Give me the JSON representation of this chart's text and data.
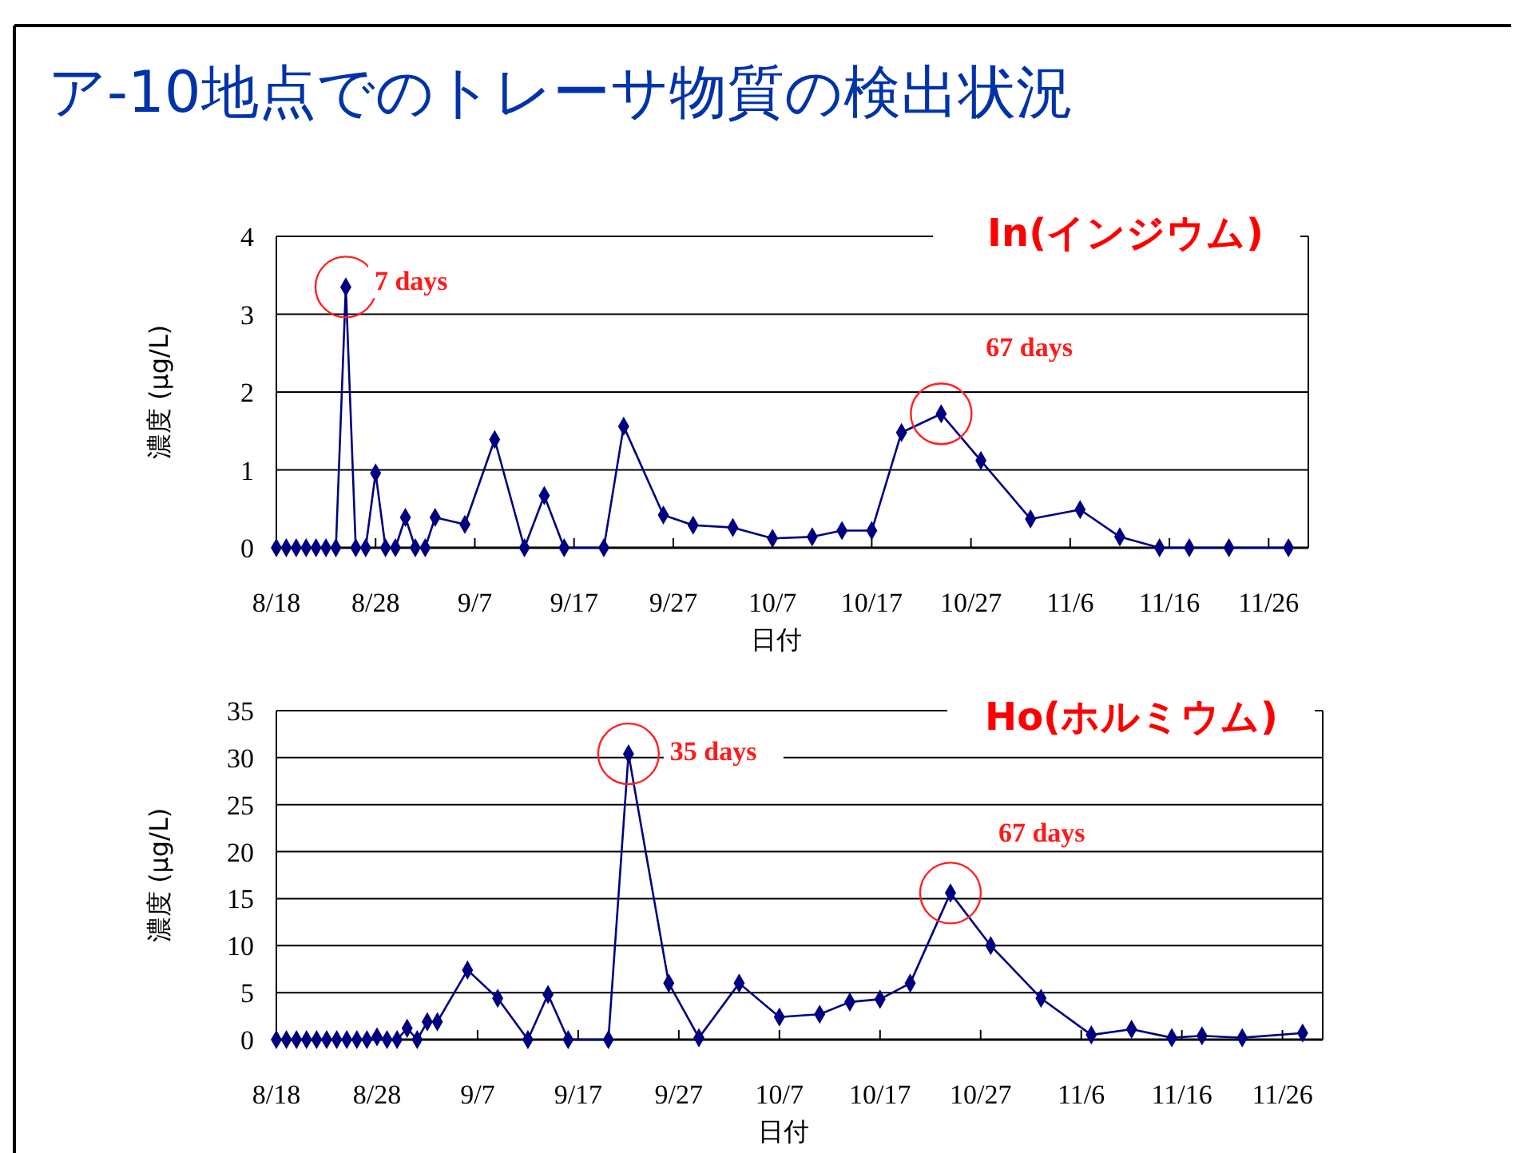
{
  "chart_data": [
    {
      "type": "line",
      "title": "ア-10地点でのトレーサ物質の検出状況",
      "subtitle": "In(インジウム)",
      "xlabel": "日付",
      "ylabel": "濃度 (μg/L)",
      "x": [
        "--08-18",
        "--08-19",
        "--08-20",
        "--08-21",
        "--08-22",
        "--08-23",
        "--08-24",
        "--08-25",
        "--08-26",
        "--08-27",
        "--08-28",
        "--08-29",
        "--08-30",
        "--08-31",
        "--09-01",
        "--09-02",
        "--09-03",
        "--09-06",
        "--09-09",
        "--09-12",
        "--09-14",
        "--09-16",
        "--09-20",
        "--09-22",
        "--09-26",
        "--09-29",
        "--10-03",
        "--10-07",
        "--10-11",
        "--10-14",
        "--10-17",
        "--10-20",
        "--10-24",
        "--10-28",
        "--11-02",
        "--11-07",
        "--11-11",
        "--11-15",
        "--11-18",
        "--11-22",
        "--11-28"
      ],
      "series": [
        {
          "color": "#000080",
          "values": [
            0,
            0,
            0,
            0,
            0,
            0,
            0,
            3.35,
            0,
            0,
            0.96,
            0,
            0,
            0.39,
            0,
            0,
            0.39,
            0.3,
            1.39,
            0,
            0.67,
            0,
            0,
            1.56,
            0.42,
            0.29,
            0.26,
            0.12,
            0.14,
            0.22,
            0.22,
            1.48,
            1.72,
            1.12,
            0.37,
            0.49,
            0.14,
            0,
            0,
            0,
            0
          ]
        }
      ],
      "xlim": [
        "--08-18",
        "--11-30"
      ],
      "xticks": [
        {
          "value": "--08-18",
          "label": "8/18"
        },
        {
          "value": "--08-28",
          "label": "8/28"
        },
        {
          "value": "--09-07",
          "label": "9/7"
        },
        {
          "value": "--09-17",
          "label": "9/17"
        },
        {
          "value": "--09-27",
          "label": "9/27"
        },
        {
          "value": "--10-07",
          "label": "10/7"
        },
        {
          "value": "--10-17",
          "label": "10/17"
        },
        {
          "value": "--10-27",
          "label": "10/27"
        },
        {
          "value": "--11-06",
          "label": "11/6"
        },
        {
          "value": "--11-16",
          "label": "11/16"
        },
        {
          "value": "--11-26",
          "label": "11/26"
        }
      ],
      "ylim": [
        0,
        4
      ],
      "yticks": [
        0,
        1,
        2,
        3,
        4
      ],
      "grid": "y",
      "marker": "diamond",
      "line_style": "solid",
      "annotations": [
        {
          "text": "7 days",
          "x": "--08-25",
          "y": 3.35
        },
        {
          "text": "67 days",
          "x": "--10-24",
          "y": 1.72
        }
      ]
    },
    {
      "type": "line",
      "subtitle": "Ho(ホルミウム)",
      "xlabel": "日付",
      "ylabel": "濃度 (μg/L)",
      "x": [
        "--08-18",
        "--08-19",
        "--08-20",
        "--08-21",
        "--08-22",
        "--08-23",
        "--08-24",
        "--08-25",
        "--08-26",
        "--08-27",
        "--08-28",
        "--08-29",
        "--08-30",
        "--08-31",
        "--09-01",
        "--09-02",
        "--09-03",
        "--09-06",
        "--09-09",
        "--09-12",
        "--09-14",
        "--09-16",
        "--09-20",
        "--09-22",
        "--09-26",
        "--09-29",
        "--10-03",
        "--10-07",
        "--10-11",
        "--10-14",
        "--10-17",
        "--10-20",
        "--10-24",
        "--10-28",
        "--11-02",
        "--11-07",
        "--11-11",
        "--11-15",
        "--11-18",
        "--11-22",
        "--11-28"
      ],
      "series": [
        {
          "color": "#000080",
          "values": [
            0,
            0,
            0,
            0,
            0,
            0,
            0,
            0,
            0,
            0,
            0.3,
            0,
            0,
            1.2,
            0,
            1.9,
            1.9,
            7.4,
            4.4,
            0,
            4.8,
            0,
            0,
            30.4,
            6,
            0.2,
            6,
            2.4,
            2.7,
            4,
            4.3,
            6,
            15.6,
            10,
            4.4,
            0.5,
            1.1,
            0.2,
            0.4,
            0.2,
            0.7
          ]
        }
      ],
      "xlim": [
        "--08-18",
        "--11-30"
      ],
      "xticks": [
        {
          "value": "--08-18",
          "label": "8/18"
        },
        {
          "value": "--08-28",
          "label": "8/28"
        },
        {
          "value": "--09-07",
          "label": "9/7"
        },
        {
          "value": "--09-17",
          "label": "9/17"
        },
        {
          "value": "--09-27",
          "label": "9/27"
        },
        {
          "value": "--10-07",
          "label": "10/7"
        },
        {
          "value": "--10-17",
          "label": "10/17"
        },
        {
          "value": "--10-27",
          "label": "10/27"
        },
        {
          "value": "--11-06",
          "label": "11/6"
        },
        {
          "value": "--11-16",
          "label": "11/16"
        },
        {
          "value": "--11-26",
          "label": "11/26"
        }
      ],
      "ylim": [
        0,
        35
      ],
      "yticks": [
        0,
        5,
        10,
        15,
        20,
        25,
        30,
        35
      ],
      "grid": "y",
      "marker": "diamond",
      "line_style": "solid",
      "annotations": [
        {
          "text": "35 days",
          "x": "--09-22",
          "y": 30.4
        },
        {
          "text": "67 days",
          "x": "--10-24",
          "y": 15.6
        }
      ]
    }
  ]
}
